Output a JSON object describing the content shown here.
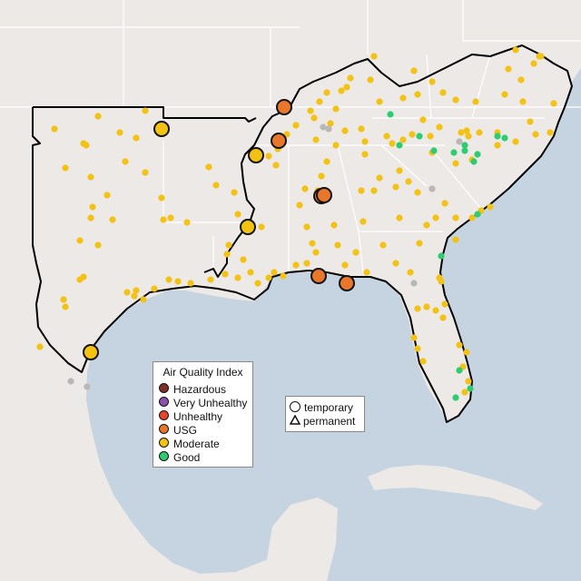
{
  "legend": {
    "title": "Air Quality Index",
    "categories": [
      {
        "label": "Hazardous",
        "color": "#7e2f2a"
      },
      {
        "label": "Very Unhealthy",
        "color": "#8e4fae"
      },
      {
        "label": "Unhealthy",
        "color": "#e9452a"
      },
      {
        "label": "USG",
        "color": "#e8772b"
      },
      {
        "label": "Moderate",
        "color": "#f3c213"
      },
      {
        "label": "Good",
        "color": "#2ecc71"
      }
    ]
  },
  "site_legend": {
    "temporary": "temporary",
    "permanent": "permanent"
  },
  "colors": {
    "water": "#c6d4e1",
    "land": "#ece9e6",
    "boundary": "#ffffff",
    "region_outline": "#000000",
    "no_data": "#b8b8b8"
  }
}
